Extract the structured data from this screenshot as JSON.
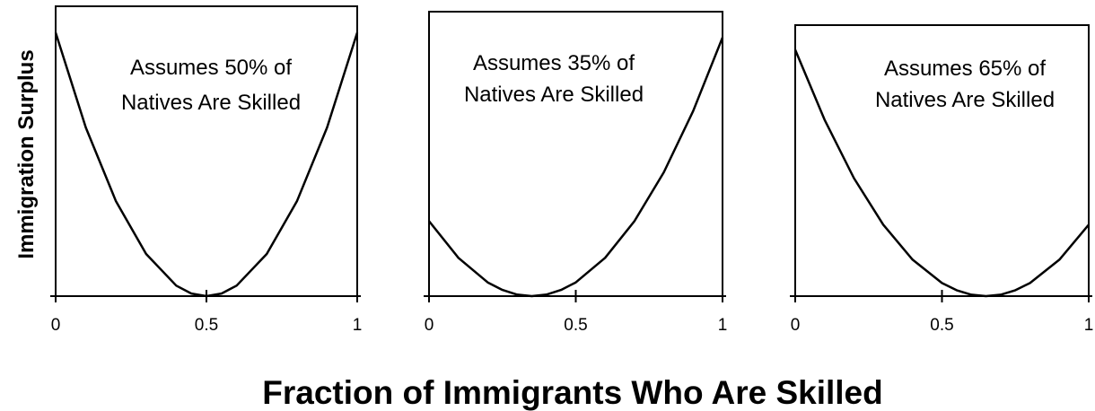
{
  "chart_data": [
    {
      "type": "line",
      "annotation": [
        "Assumes 50% of",
        "Natives Are Skilled"
      ],
      "x": [
        0,
        0.1,
        0.2,
        0.3,
        0.4,
        0.45,
        0.5,
        0.55,
        0.6,
        0.7,
        0.8,
        0.9,
        1.0
      ],
      "y": [
        1.0,
        0.64,
        0.36,
        0.16,
        0.04,
        0.01,
        0.0,
        0.01,
        0.04,
        0.16,
        0.36,
        0.64,
        1.0
      ],
      "x_ticks": [
        "0",
        "0.5",
        "1"
      ],
      "xlim": [
        0,
        1
      ],
      "ylim": [
        0,
        1.1
      ]
    },
    {
      "type": "line",
      "annotation": [
        "Assumes 35% of",
        "Natives Are Skilled"
      ],
      "x": [
        0,
        0.1,
        0.2,
        0.25,
        0.3,
        0.35,
        0.4,
        0.45,
        0.5,
        0.6,
        0.7,
        0.8,
        0.9,
        1.0
      ],
      "y": [
        0.29,
        0.148,
        0.053,
        0.024,
        0.006,
        0.0,
        0.006,
        0.024,
        0.053,
        0.148,
        0.29,
        0.479,
        0.716,
        1.0
      ],
      "x_ticks": [
        "0",
        "0.5",
        "1"
      ],
      "xlim": [
        0,
        1
      ],
      "ylim": [
        0,
        1.1
      ]
    },
    {
      "type": "line",
      "annotation": [
        "Assumes 65% of",
        "Natives Are Skilled"
      ],
      "x": [
        0,
        0.1,
        0.2,
        0.3,
        0.4,
        0.5,
        0.55,
        0.6,
        0.65,
        0.7,
        0.75,
        0.8,
        0.9,
        1.0
      ],
      "y": [
        1.0,
        0.716,
        0.479,
        0.29,
        0.148,
        0.053,
        0.024,
        0.006,
        0.0,
        0.006,
        0.024,
        0.053,
        0.148,
        0.29
      ],
      "x_ticks": [
        "0",
        "0.5",
        "1"
      ],
      "xlim": [
        0,
        1
      ],
      "ylim": [
        0,
        1.1
      ]
    }
  ],
  "ylabel": "Immigration Surplus",
  "xlabel": "Fraction of Immigrants Who Are Skilled"
}
